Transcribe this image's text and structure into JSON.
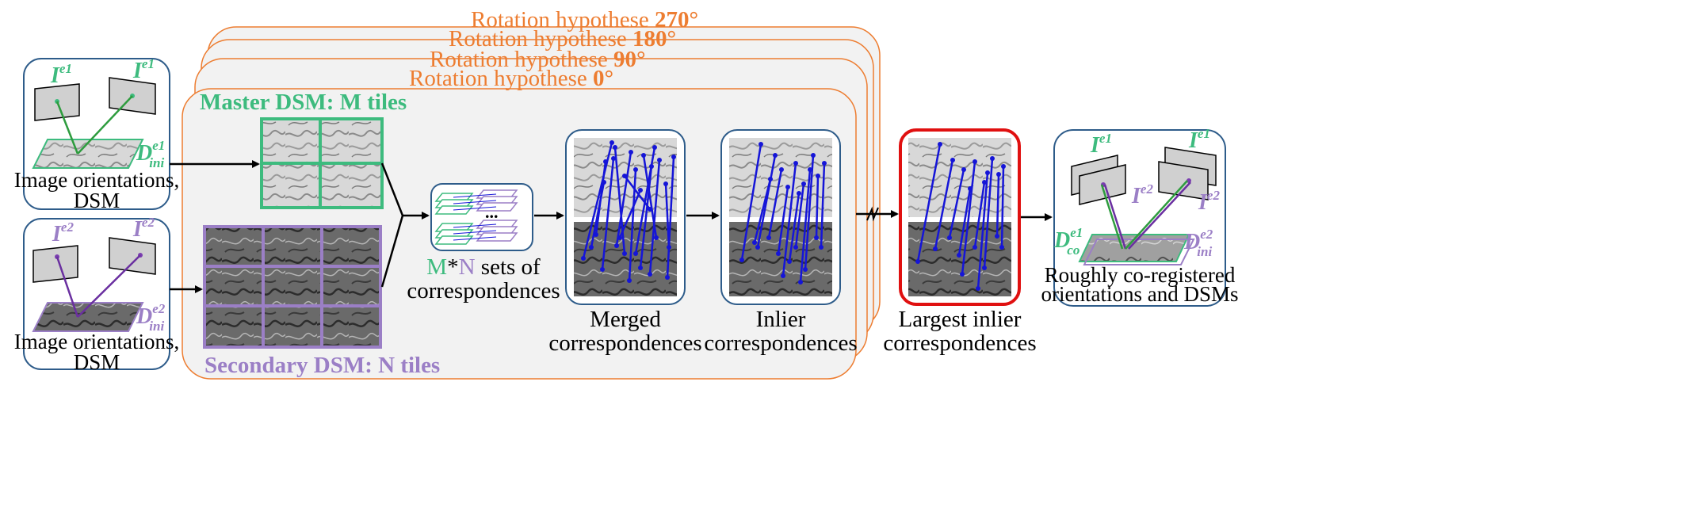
{
  "colors": {
    "orange": "#ED7D31",
    "green": "#3DBB7E",
    "purple": "#9B7FC6",
    "blue_border": "#2E5C8A",
    "red": "#E01010",
    "match": "#1515D8",
    "panel_bg": "#F2F2F2"
  },
  "hypotheses": [
    {
      "prefix": "Rotation hypothese ",
      "angle": "270",
      "deg": "°"
    },
    {
      "prefix": "Rotation hypothese ",
      "angle": "180",
      "deg": "°"
    },
    {
      "prefix": "Rotation hypothese ",
      "angle": "90",
      "deg": "°"
    },
    {
      "prefix": "Rotation hypothese ",
      "angle": "0",
      "deg": "°"
    }
  ],
  "master_label": "Master DSM: M tiles",
  "secondary_label": "Secondary DSM: N tiles",
  "input1": {
    "I_left": "I",
    "I_right": "I",
    "sup": "e1",
    "D": "D",
    "D_sup": "e1",
    "D_sub": "ini",
    "caption_line1": "Image orientations,",
    "caption_line2": "DSM"
  },
  "input2": {
    "I_left": "I",
    "I_right": "I",
    "sup": "e2",
    "D": "D",
    "D_sup": "e2",
    "D_sub": "ini",
    "caption_line1": "Image orientations,",
    "caption_line2": "DSM"
  },
  "sets": {
    "M": "M",
    "star": "*",
    "N": "N",
    "rest": " sets of",
    "line2": "correspondences",
    "dots": "..."
  },
  "merged": {
    "line1": "Merged",
    "line2": "correspondences"
  },
  "inlier": {
    "line1": "Inlier",
    "line2": "correspondences"
  },
  "largest": {
    "line1": "Largest inlier",
    "line2": "correspondences"
  },
  "output": {
    "I": "I",
    "e1": "e1",
    "e2": "e2",
    "D_co": "D",
    "co_sup": "e1",
    "co_sub": "co",
    "D_ini": "D",
    "ini_sup": "e2",
    "ini_sub": "ini",
    "line1": "Roughly co-registered",
    "line2": "orientations and DSMs"
  }
}
